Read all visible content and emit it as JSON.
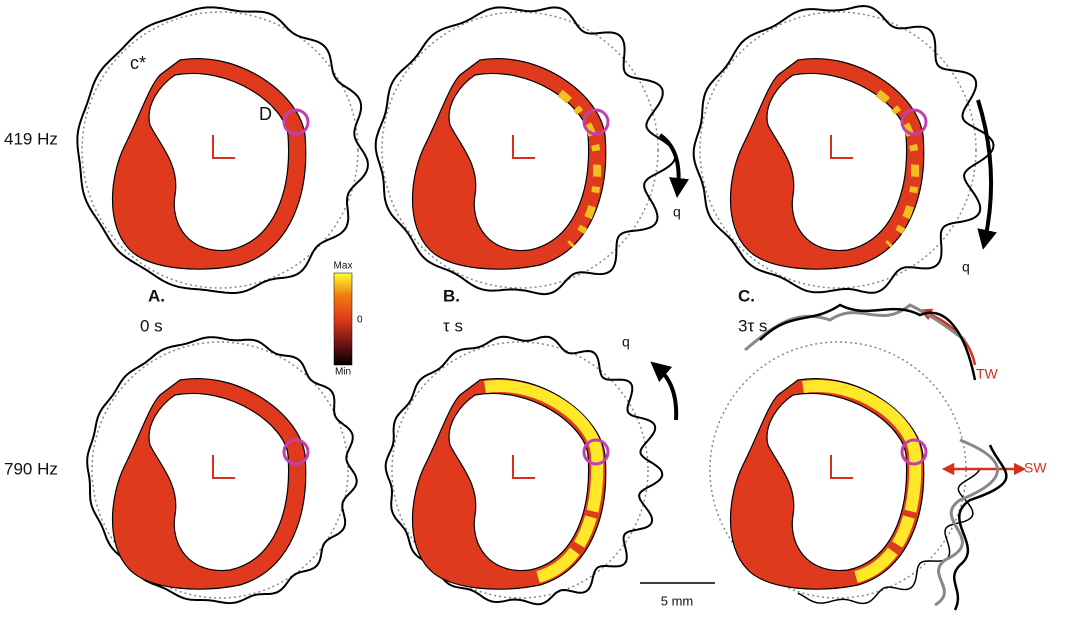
{
  "rows": [
    {
      "label": "419 Hz"
    },
    {
      "label": "790 Hz"
    }
  ],
  "panels": [
    {
      "letter": "A.",
      "time": "0 s"
    },
    {
      "letter": "B.",
      "time": "τ s"
    },
    {
      "letter": "C.",
      "time": "3τ s"
    }
  ],
  "annotations": {
    "c_star": "c*",
    "d": "D",
    "q_top_b": "q",
    "q_top_c": "q",
    "q_bottom_b": "q",
    "tw": "TW",
    "sw": "SW"
  },
  "colorbar": {
    "max": "Max",
    "zero": "0",
    "min": "Min"
  },
  "scale_bar": "5 mm"
}
